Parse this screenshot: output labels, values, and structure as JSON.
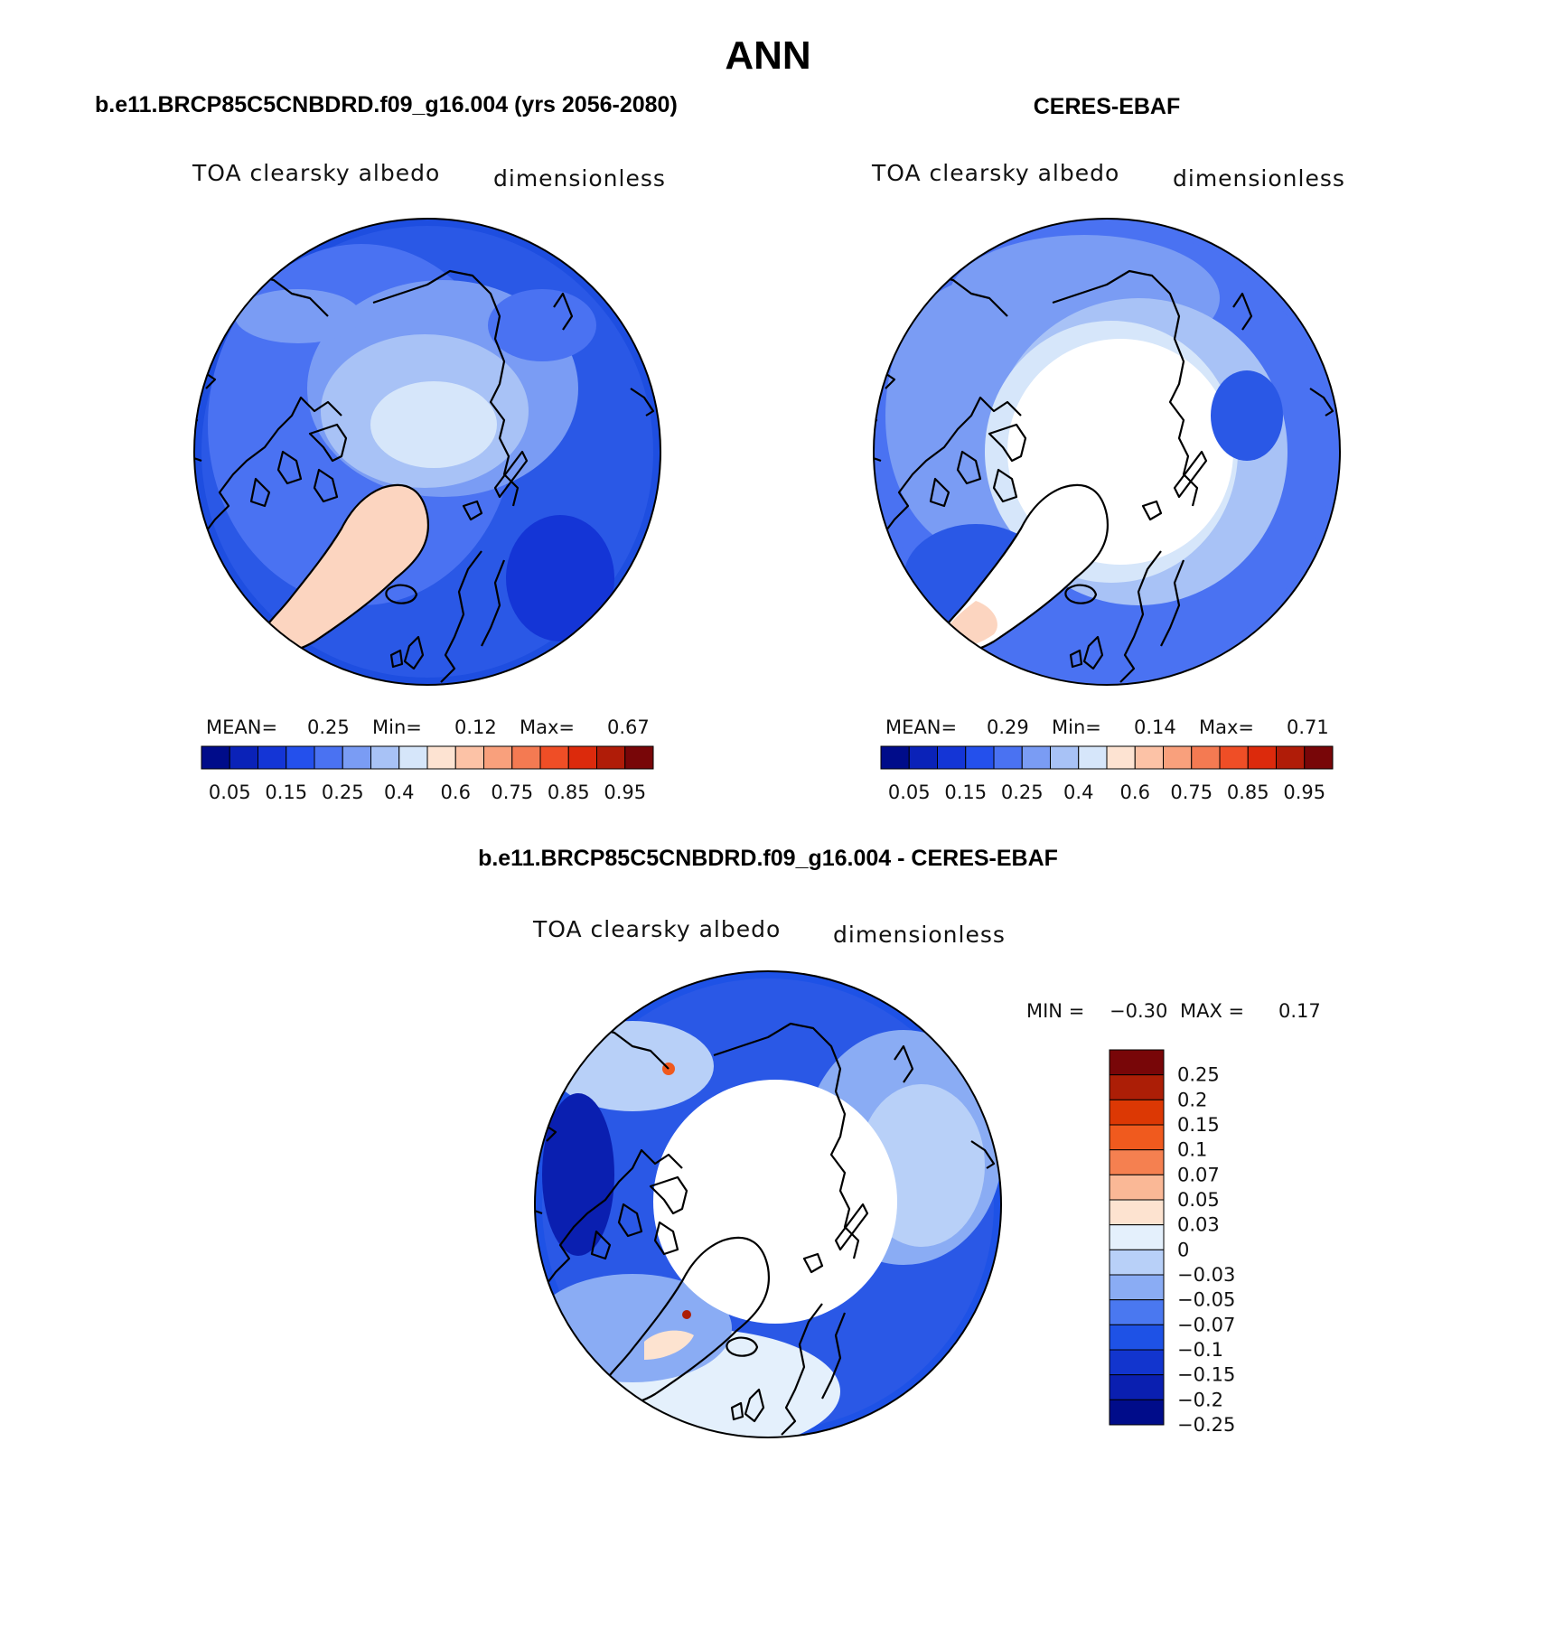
{
  "title": "ANN",
  "panels": [
    {
      "id": "model",
      "heading": "b.e11.BRCP85C5CNBDRD.f09_g16.004 (yrs 2056-2080)",
      "variable": "TOA clearsky albedo",
      "units": "dimensionless",
      "stats": {
        "mean_label": "MEAN=",
        "mean": "0.25",
        "min_label": "Min=",
        "min": "0.12",
        "max_label": "Max=",
        "max": "0.67"
      }
    },
    {
      "id": "obs",
      "heading": "CERES-EBAF",
      "variable": "TOA clearsky albedo",
      "units": "dimensionless",
      "stats": {
        "mean_label": "MEAN=",
        "mean": "0.29",
        "min_label": "Min=",
        "min": "0.14",
        "max_label": "Max=",
        "max": "0.71"
      }
    },
    {
      "id": "diff",
      "heading": "b.e11.BRCP85C5CNBDRD.f09_g16.004 - CERES-EBAF",
      "variable": "TOA clearsky albedo",
      "units": "dimensionless",
      "stats": {
        "min_label": "MIN =",
        "min": "−0.30",
        "max_label": "MAX =",
        "max": "0.17"
      }
    }
  ],
  "colorbars": {
    "albedo": {
      "colors": [
        "#000c8a",
        "#0a22b8",
        "#1435d6",
        "#2450ec",
        "#4a72f2",
        "#7a9cf4",
        "#a8c2f6",
        "#d6e6fa",
        "#fde3d2",
        "#fcc2a6",
        "#f9a07c",
        "#f47a52",
        "#ef4e26",
        "#dc2a0c",
        "#b01c08",
        "#780608"
      ],
      "labels": [
        "0.05",
        "0.15",
        "0.25",
        "0.4",
        "0.6",
        "0.75",
        "0.85",
        "0.95"
      ]
    },
    "difference": {
      "colors": [
        "#780608",
        "#ac1e06",
        "#dc3804",
        "#f05a1e",
        "#f58050",
        "#fab896",
        "#fde3d0",
        "#e4f0fc",
        "#b8d0f8",
        "#8aacf4",
        "#4a78f0",
        "#1e52e6",
        "#1235ce",
        "#0a1fb0",
        "#000c8a"
      ],
      "labels": [
        "0.25",
        "0.2",
        "0.15",
        "0.1",
        "0.07",
        "0.05",
        "0.03",
        "0",
        "−0.03",
        "−0.05",
        "−0.07",
        "−0.1",
        "−0.15",
        "−0.2",
        "−0.25"
      ]
    }
  }
}
